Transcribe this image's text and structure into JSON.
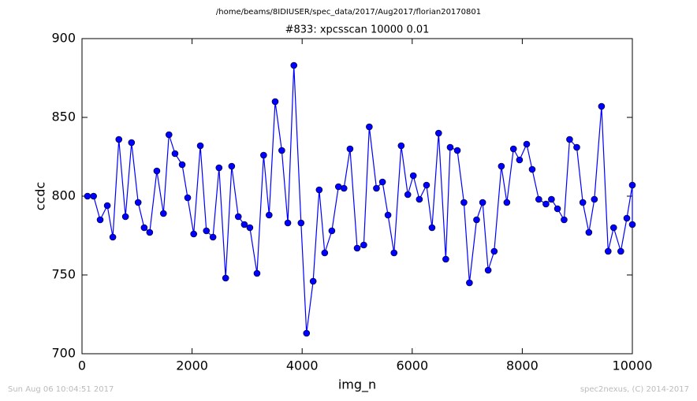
{
  "chart_data": {
    "type": "line",
    "suptitle": "/home/beams/8IDIUSER/spec_data/2017/Aug2017/florian20170801",
    "title": "#833: xpcsscan 10000 0.01",
    "x_label": "img_n",
    "y_label": "ccdc",
    "footer_left": "Sun Aug 06 10:04:51 2017",
    "footer_right": "spec2nexus, (C) 2014-2017",
    "xlim": [
      0,
      10000
    ],
    "ylim": [
      700,
      900
    ],
    "xticks": [
      0,
      2000,
      4000,
      6000,
      8000,
      10000
    ],
    "yticks": [
      700,
      750,
      800,
      850,
      900
    ],
    "grid": false,
    "x": [
      100,
      210,
      330,
      460,
      560,
      670,
      790,
      900,
      1020,
      1130,
      1230,
      1360,
      1480,
      1580,
      1690,
      1820,
      1920,
      2030,
      2150,
      2260,
      2380,
      2490,
      2610,
      2720,
      2840,
      2950,
      3050,
      3180,
      3300,
      3400,
      3510,
      3630,
      3740,
      3850,
      3980,
      4080,
      4200,
      4310,
      4410,
      4540,
      4660,
      4760,
      4870,
      5000,
      5120,
      5220,
      5350,
      5460,
      5560,
      5670,
      5800,
      5920,
      6020,
      6130,
      6260,
      6360,
      6480,
      6610,
      6690,
      6820,
      6940,
      7040,
      7170,
      7280,
      7380,
      7490,
      7620,
      7720,
      7840,
      7950,
      8080,
      8180,
      8300,
      8430,
      8530,
      8640,
      8760,
      8860,
      8990,
      9100,
      9210,
      9310,
      9440,
      9560,
      9660,
      9790,
      9900,
      10000,
      10000
    ],
    "series": [
      {
        "name": "ccdc",
        "color": "#0000ff",
        "values": [
          800,
          800,
          785,
          794,
          774,
          836,
          787,
          834,
          796,
          780,
          777,
          816,
          789,
          839,
          827,
          820,
          799,
          776,
          832,
          778,
          774,
          818,
          748,
          819,
          787,
          782,
          780,
          751,
          826,
          788,
          860,
          829,
          783,
          883,
          783,
          713,
          746,
          804,
          764,
          778,
          806,
          805,
          830,
          767,
          769,
          844,
          805,
          809,
          788,
          764,
          832,
          801,
          813,
          798,
          807,
          780,
          840,
          760,
          831,
          829,
          796,
          745,
          785,
          796,
          753,
          765,
          819,
          796,
          830,
          823,
          833,
          817,
          798,
          795,
          798,
          792,
          785,
          836,
          831,
          796,
          777,
          798,
          857,
          765,
          780,
          765,
          786,
          807,
          782
        ]
      }
    ]
  }
}
